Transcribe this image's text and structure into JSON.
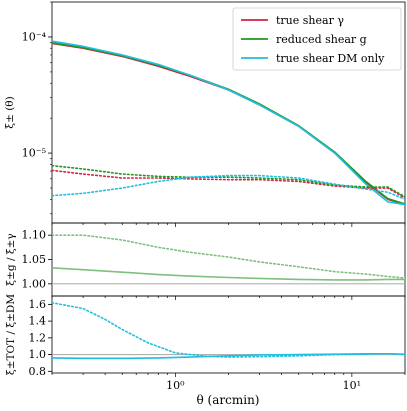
{
  "chart_data": [
    {
      "type": "line",
      "panel": "main",
      "xscale": "log",
      "yscale": "log",
      "xlim": [
        0.2,
        20
      ],
      "ylim": [
        2.5e-06,
        0.0002
      ],
      "ylabel": "ξ± (θ)",
      "yticks": [
        {
          "value": 0.0001,
          "label": "10⁻⁴"
        },
        {
          "value": 1e-05,
          "label": "10⁻⁵"
        }
      ],
      "legend_position": "top-right",
      "series": [
        {
          "name": "true shear γ",
          "color": "#d62246",
          "style": "solid",
          "x": [
            0.2,
            0.3,
            0.5,
            0.8,
            1.2,
            2,
            3,
            5,
            8,
            12,
            16,
            20
          ],
          "y": [
            8.8e-05,
            8e-05,
            6.8e-05,
            5.6e-05,
            4.6e-05,
            3.5e-05,
            2.6e-05,
            1.7e-05,
            1e-05,
            5.6e-06,
            4e-06,
            3.6e-06
          ]
        },
        {
          "name": "reduced shear g",
          "color": "#1f9a1f",
          "style": "solid",
          "x": [
            0.2,
            0.3,
            0.5,
            0.8,
            1.2,
            2,
            3,
            5,
            8,
            12,
            16,
            20
          ],
          "y": [
            8.9e-05,
            8.1e-05,
            6.9e-05,
            5.7e-05,
            4.7e-05,
            3.55e-05,
            2.65e-05,
            1.72e-05,
            1.02e-05,
            5.7e-06,
            4.05e-06,
            3.65e-06
          ]
        },
        {
          "name": "true shear DM only",
          "color": "#1fbfe0",
          "style": "solid",
          "x": [
            0.2,
            0.3,
            0.5,
            0.8,
            1.2,
            2,
            3,
            5,
            8,
            12,
            16,
            20
          ],
          "y": [
            9.2e-05,
            8.3e-05,
            7e-05,
            5.8e-05,
            4.7e-05,
            3.5e-05,
            2.6e-05,
            1.7e-05,
            1e-05,
            5.4e-06,
            3.8e-06,
            3.6e-06
          ]
        },
        {
          "color": "#d62246",
          "style": "dotted",
          "x": [
            0.2,
            0.3,
            0.5,
            0.8,
            1.2,
            2,
            3,
            5,
            8,
            12,
            16,
            20
          ],
          "y": [
            7.1e-06,
            6.6e-06,
            6.1e-06,
            6.1e-06,
            6e-06,
            5.9e-06,
            5.9e-06,
            5.7e-06,
            5.2e-06,
            5e-06,
            5e-06,
            4.1e-06
          ]
        },
        {
          "color": "#1f9a1f",
          "style": "dotted",
          "x": [
            0.2,
            0.3,
            0.5,
            0.8,
            1.2,
            2,
            3,
            5,
            8,
            12,
            16,
            20
          ],
          "y": [
            7.8e-06,
            7.3e-06,
            6.6e-06,
            6.3e-06,
            6.2e-06,
            6.2e-06,
            6.1e-06,
            5.9e-06,
            5.3e-06,
            5.1e-06,
            5.1e-06,
            4.2e-06
          ]
        },
        {
          "color": "#1fbfe0",
          "style": "dotted",
          "x": [
            0.2,
            0.3,
            0.5,
            0.8,
            1.2,
            2,
            3,
            5,
            8,
            12,
            16,
            20
          ],
          "y": [
            4.3e-06,
            4.5e-06,
            5e-06,
            5.7e-06,
            6.2e-06,
            6.4e-06,
            6.4e-06,
            6.1e-06,
            5.4e-06,
            4.9e-06,
            4.6e-06,
            4e-06
          ]
        }
      ]
    },
    {
      "type": "line",
      "panel": "ratio-g",
      "xscale": "log",
      "xlim": [
        0.2,
        20
      ],
      "ylim": [
        0.975,
        1.125
      ],
      "ylabel": "ξ±g / ξ±γ",
      "yticks": [
        {
          "value": 1.0,
          "label": "1.00"
        },
        {
          "value": 1.05,
          "label": "1.05"
        },
        {
          "value": 1.1,
          "label": "1.10"
        }
      ],
      "reference_line": 1.0,
      "series": [
        {
          "color": "#7fbf7f",
          "style": "solid",
          "x": [
            0.2,
            0.3,
            0.5,
            0.8,
            1.2,
            2,
            3,
            5,
            8,
            12,
            16,
            20
          ],
          "y": [
            1.033,
            1.029,
            1.024,
            1.019,
            1.016,
            1.013,
            1.011,
            1.009,
            1.008,
            1.008,
            1.009,
            1.009
          ]
        },
        {
          "color": "#7fbf7f",
          "style": "dotted",
          "x": [
            0.2,
            0.3,
            0.5,
            0.8,
            1.2,
            2,
            3,
            5,
            8,
            12,
            16,
            20
          ],
          "y": [
            1.1,
            1.1,
            1.09,
            1.075,
            1.065,
            1.055,
            1.045,
            1.035,
            1.025,
            1.02,
            1.015,
            1.012
          ]
        }
      ]
    },
    {
      "type": "line",
      "panel": "ratio-tot",
      "xscale": "log",
      "xlim": [
        0.2,
        20
      ],
      "ylim": [
        0.78,
        1.7
      ],
      "xlabel": "θ (arcmin)",
      "ylabel": "ξ±TOT / ξ±DM",
      "yticks": [
        {
          "value": 0.8,
          "label": "0.8"
        },
        {
          "value": 1.0,
          "label": "1.0"
        },
        {
          "value": 1.2,
          "label": "1.2"
        },
        {
          "value": 1.4,
          "label": "1.4"
        },
        {
          "value": 1.6,
          "label": "1.6"
        }
      ],
      "xticks": [
        {
          "value": 1,
          "label": "10⁰"
        },
        {
          "value": 10,
          "label": "10¹"
        }
      ],
      "reference_line": 1.0,
      "series": [
        {
          "color": "#1fbfe0",
          "style": "solid",
          "x": [
            0.2,
            0.3,
            0.5,
            0.8,
            1.2,
            2,
            3,
            5,
            8,
            12,
            16,
            20
          ],
          "y": [
            0.96,
            0.955,
            0.955,
            0.96,
            0.97,
            0.985,
            0.995,
            1.0,
            1.005,
            1.01,
            1.01,
            1.005
          ]
        },
        {
          "color": "#1fbfe0",
          "style": "dotted",
          "x": [
            0.2,
            0.3,
            0.4,
            0.5,
            0.7,
            1.0,
            1.5,
            2,
            3,
            5,
            8,
            12,
            16,
            20
          ],
          "y": [
            1.62,
            1.55,
            1.42,
            1.3,
            1.14,
            1.02,
            0.98,
            0.97,
            0.975,
            0.985,
            1.0,
            1.005,
            1.01,
            1.0
          ]
        }
      ]
    }
  ]
}
